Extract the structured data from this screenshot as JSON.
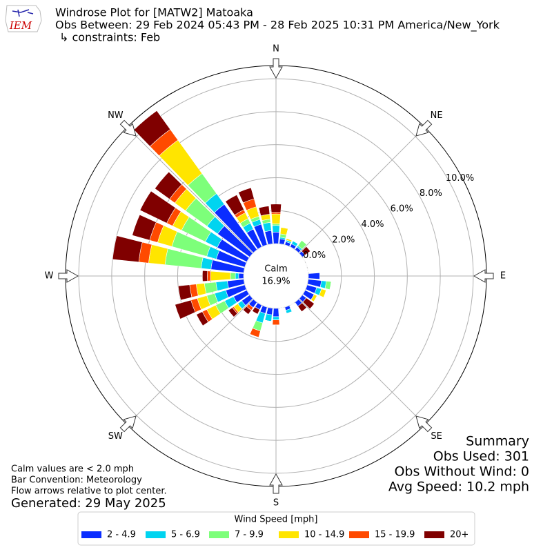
{
  "chart_data": {
    "type": "windrose",
    "logo_text": "IEM",
    "title": "Windrose Plot for [MATW2] Matoaka",
    "subtitle": "Obs Between: 29 Feb 2024 05:43 PM - 28 Feb 2025 10:31 PM America/New_York",
    "constraints": "↳ constraints: Feb",
    "directions": [
      0,
      10,
      20,
      30,
      40,
      50,
      60,
      70,
      80,
      90,
      100,
      110,
      120,
      130,
      140,
      150,
      160,
      170,
      180,
      190,
      200,
      210,
      220,
      230,
      240,
      250,
      260,
      270,
      280,
      290,
      300,
      310,
      320,
      330,
      340,
      350
    ],
    "compass": [
      {
        "label": "N",
        "angle": 0
      },
      {
        "label": "NE",
        "angle": 45
      },
      {
        "label": "E",
        "angle": 90
      },
      {
        "label": "SE",
        "angle": 135
      },
      {
        "label": "S",
        "angle": 180
      },
      {
        "label": "SW",
        "angle": 225
      },
      {
        "label": "W",
        "angle": 270
      },
      {
        "label": "NW",
        "angle": 315
      }
    ],
    "rlim": [
      0,
      10.8
    ],
    "rticks": [
      {
        "value": 0,
        "label": "0.0%"
      },
      {
        "value": 2,
        "label": "2.0%"
      },
      {
        "value": 4,
        "label": "4.0%"
      },
      {
        "value": 6,
        "label": "6.0%"
      },
      {
        "value": 8,
        "label": "8.0%"
      },
      {
        "value": 10,
        "label": "10.0%"
      }
    ],
    "calm_label": "Calm",
    "calm_value": {
      "value": 16.9,
      "label": "16.9%"
    },
    "legend_title": "Wind Speed [mph]",
    "series": [
      {
        "name": "2 - 4.9",
        "color": "#0a2dff",
        "values": [
          0.7,
          0.3,
          0.2,
          0.2,
          0.2,
          0.2,
          0,
          0,
          0,
          0.7,
          0.8,
          0.6,
          0.6,
          0.3,
          0.3,
          0,
          0.2,
          0,
          0.5,
          0.4,
          0.4,
          0.3,
          0.4,
          0.6,
          0.9,
          1.2,
          1.0,
          0.3,
          2.0,
          1.8,
          2.0,
          2.4,
          3.4,
          1.2,
          1.3,
          0.8
        ]
      },
      {
        "name": "5 - 6.9",
        "color": "#00d4f0",
        "values": [
          0.4,
          0.1,
          0.1,
          0.2,
          0.1,
          0,
          0,
          0,
          0,
          0,
          0.3,
          0.3,
          0,
          0,
          0,
          0,
          0.2,
          0,
          0.2,
          0.4,
          0.6,
          0,
          0,
          0.3,
          0.6,
          0.7,
          0.7,
          0.2,
          0.6,
          0.6,
          0.8,
          0.8,
          0.8,
          0.4,
          0.3,
          0.5
        ]
      },
      {
        "name": "7 - 9.9",
        "color": "#7dff7a",
        "values": [
          0.1,
          0.2,
          0,
          0,
          0.4,
          0,
          0,
          0,
          0,
          0,
          0.3,
          0,
          0,
          0,
          0,
          0,
          0,
          0,
          0,
          0,
          0.5,
          0,
          0,
          0,
          0.6,
          0.5,
          0.7,
          0.3,
          2.2,
          2.2,
          1.6,
          1.6,
          1.5,
          0.3,
          0.2,
          0.2
        ]
      },
      {
        "name": "10 - 14.9",
        "color": "#ffe500",
        "values": [
          0.6,
          0.4,
          0.1,
          0,
          0,
          0,
          0,
          0,
          0,
          0,
          0,
          0.3,
          0.2,
          0,
          0,
          0,
          0,
          0,
          0,
          0,
          0,
          0,
          0,
          0.3,
          0.6,
          0.6,
          0.5,
          1.2,
          1.0,
          0.9,
          0.6,
          0.8,
          2.5,
          0.4,
          0.6,
          0.3
        ]
      },
      {
        "name": "15 - 19.9",
        "color": "#ff4a00",
        "values": [
          0.1,
          0,
          0,
          0,
          0,
          0,
          0,
          0,
          0,
          0,
          0,
          0,
          0,
          0,
          0,
          0,
          0,
          0,
          0.3,
          0,
          0.4,
          0,
          0.2,
          0.1,
          0.3,
          0.4,
          0.4,
          0.2,
          0.6,
          0.5,
          0.4,
          0.4,
          0.8,
          0.2,
          0.5,
          0
        ]
      },
      {
        "name": "20+",
        "color": "#800000",
        "values": [
          0.5,
          0,
          0,
          0,
          0,
          0.4,
          0,
          0,
          0,
          0,
          0,
          0,
          0,
          0.6,
          0.4,
          0,
          0,
          0,
          0,
          0,
          0,
          0.3,
          0.3,
          0.3,
          0.4,
          1.0,
          0.7,
          0.3,
          1.6,
          1.1,
          1.8,
          1.1,
          1.4,
          1.0,
          0.7,
          0.5
        ]
      }
    ],
    "summary": [
      "Summary",
      "Obs Used: 301",
      "Obs Without Wind: 0",
      "Avg Speed: 10.2 mph"
    ],
    "notes": [
      "Calm values are < 2.0 mph",
      "Bar Convention: Meteorology",
      "Flow arrows relative to plot center."
    ],
    "generated": "Generated: 29 May 2025"
  }
}
